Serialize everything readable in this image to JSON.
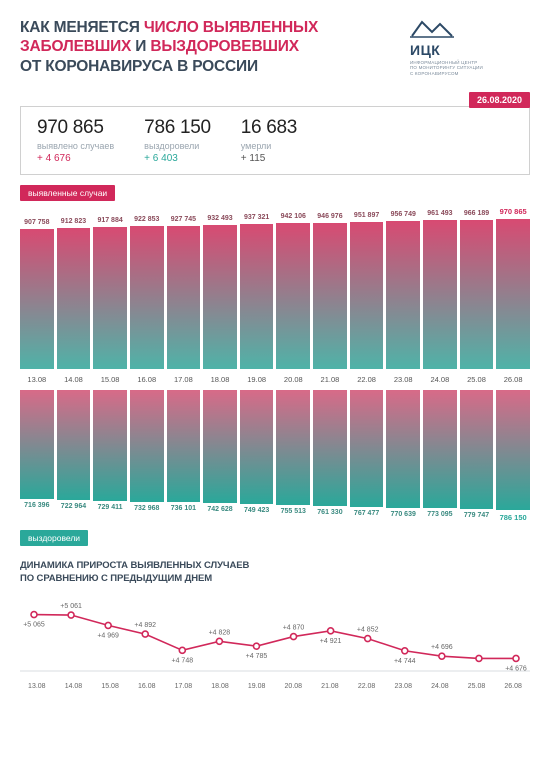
{
  "colors": {
    "cases": "#d1285a",
    "recovered": "#2aa89a",
    "deaths": "#555555",
    "title_dark": "#3a4a5a",
    "bar_cases_grad_top": "#d84a72",
    "bar_cases_grad_bot": "#4fb3a8",
    "bar_rec_grad_top": "#d86a88",
    "bar_rec_grad_bot": "#2aa89a",
    "line_color": "#d1285a",
    "grid": "#d9dde1"
  },
  "title_line1_a": "КАК МЕНЯЕТСЯ ",
  "title_line1_b": "ЧИСЛО ВЫЯВЛЕННЫХ",
  "title_line2_a": "ЗАБОЛЕВШИХ",
  "title_line2_b": " И ",
  "title_line2_c": "ВЫЗДОРОВЕВШИХ",
  "title_line3": "ОТ КОРОНАВИРУСА В РОССИИ",
  "logo": {
    "abbr": "ИЦК",
    "sub1": "ИНФОРМАЦИОННЫЙ ЦЕНТР",
    "sub2": "ПО МОНИТОРИНГУ СИТУАЦИИ",
    "sub3": "С КОРОНАВИРУСОМ"
  },
  "date": "26.08.2020",
  "stats": {
    "cases": {
      "value": "970 865",
      "label": "выявлено случаев",
      "delta": "+ 4 676"
    },
    "recovered": {
      "value": "786 150",
      "label": "выздоровели",
      "delta": "+ 6 403"
    },
    "deaths": {
      "value": "16 683",
      "label": "умерли",
      "delta": "+ 115"
    }
  },
  "badge_cases": "выявленные случаи",
  "badge_recovered": "выздоровели",
  "dates": [
    "13.08",
    "14.08",
    "15.08",
    "16.08",
    "17.08",
    "18.08",
    "19.08",
    "20.08",
    "21.08",
    "22.08",
    "23.08",
    "24.08",
    "25.08",
    "26.08"
  ],
  "cases_series": {
    "values": [
      907758,
      912823,
      917884,
      922853,
      927745,
      932493,
      937321,
      942106,
      946976,
      951897,
      956749,
      961493,
      966189,
      970865
    ],
    "labels": [
      "907 758",
      "912 823",
      "917 884",
      "922 853",
      "927 745",
      "932 493",
      "937 321",
      "942 106",
      "946 976",
      "951 897",
      "956 749",
      "961 493",
      "966 189",
      "970 865"
    ],
    "max_height": 150,
    "min_ratio": 0.935,
    "highlight_index": 13
  },
  "recovered_series": {
    "values": [
      716396,
      722964,
      729411,
      732968,
      736101,
      742628,
      749423,
      755513,
      761330,
      767477,
      770639,
      773095,
      779747,
      786150
    ],
    "labels": [
      "716 396",
      "722 964",
      "729 411",
      "732 968",
      "736 101",
      "742 628",
      "749 423",
      "755 513",
      "761 330",
      "767 477",
      "770 639",
      "773 095",
      "779 747",
      "786 150"
    ],
    "max_height": 120,
    "min_ratio": 0.91,
    "highlight_index": 13
  },
  "linechart": {
    "title1": "ДИНАМИКА ПРИРОСТА ВЫЯВЛЕННЫХ СЛУЧАЕВ",
    "title2": "ПО СРАВНЕНИЮ С ПРЕДЫДУЩИМ ДНЕМ",
    "values": [
      5065,
      5061,
      4969,
      4892,
      4748,
      4828,
      4785,
      4870,
      4921,
      4852,
      4744,
      4696,
      4676,
      4676
    ],
    "labels": [
      "+5 065",
      "+5 061",
      "+4 969",
      "+4 892",
      "+4 748",
      "+4 828",
      "+4 785",
      "+4 870",
      "+4 921",
      "+4 852",
      "+4 744",
      "+4 696",
      "",
      "+4 676"
    ],
    "label_above": [
      false,
      true,
      false,
      true,
      false,
      true,
      false,
      true,
      false,
      true,
      false,
      true,
      false,
      false
    ],
    "ymin": 4600,
    "ymax": 5150,
    "marker_radius": 3
  }
}
